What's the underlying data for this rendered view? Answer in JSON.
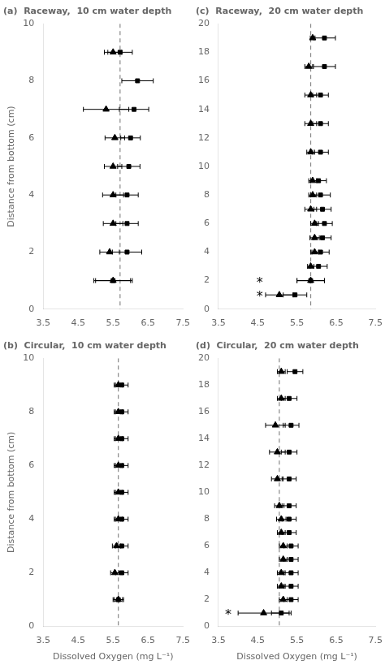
{
  "chart_data": [
    {
      "type": "scatter",
      "title": "(a)  Raceway,  10 cm water depth",
      "ylabel": "Distance from bottom (cm)",
      "xlim": [
        3.5,
        7.5
      ],
      "ylim": [
        0,
        10
      ],
      "xticks": [
        3.5,
        4.5,
        5.5,
        6.5,
        7.5
      ],
      "yticks": [
        0,
        2,
        4,
        6,
        8,
        10
      ],
      "grid": false,
      "vlines": [
        {
          "x": 5.7,
          "color": "#888888",
          "line_style": "dashed"
        }
      ],
      "series": [
        {
          "marker": "triangle",
          "color": "black",
          "x": [
            5.5,
            5.3,
            5.55,
            5.5,
            5.5,
            5.5,
            5.4,
            5.5
          ],
          "values": [
            9,
            7,
            6,
            5,
            4,
            3,
            2,
            1
          ],
          "xerr": [
            0.25,
            0.65,
            0.28,
            0.25,
            0.3,
            0.28,
            0.28,
            0.55
          ]
        },
        {
          "marker": "square",
          "color": "black",
          "x": [
            5.7,
            6.2,
            6.1,
            6.0,
            5.95,
            5.9,
            5.9,
            5.9,
            5.5
          ],
          "values": [
            9,
            8,
            7,
            6,
            5,
            4,
            3,
            2,
            1
          ],
          "xerr": [
            0.35,
            0.45,
            0.42,
            0.28,
            0.32,
            0.32,
            0.32,
            0.42,
            0.5
          ]
        }
      ]
    },
    {
      "type": "scatter",
      "title": "(b)  Circular,  10 cm water depth",
      "ylabel": "Distance from bottom (cm)",
      "xlabel": "Dissolved Oxygen (mg L⁻¹)",
      "xlim": [
        3.5,
        7.5
      ],
      "ylim": [
        0,
        10
      ],
      "xticks": [
        3.5,
        4.5,
        5.5,
        6.5,
        7.5
      ],
      "yticks": [
        0,
        2,
        4,
        6,
        8,
        10
      ],
      "grid": false,
      "vlines": [
        {
          "x": 5.65,
          "color": "#888888",
          "line_style": "dashed"
        }
      ],
      "series": [
        {
          "marker": "triangle",
          "color": "black",
          "x": [
            5.65,
            5.65,
            5.65,
            5.65,
            5.65,
            5.65,
            5.6,
            5.55,
            5.65
          ],
          "values": [
            9,
            8,
            7,
            6,
            5,
            4,
            3,
            2,
            1
          ],
          "xerr": [
            0.12,
            0.12,
            0.12,
            0.12,
            0.12,
            0.12,
            0.12,
            0.12,
            0.12
          ]
        },
        {
          "marker": "square",
          "color": "black",
          "x": [
            5.75,
            5.75,
            5.75,
            5.75,
            5.75,
            5.75,
            5.75,
            5.75,
            5.65
          ],
          "values": [
            9,
            8,
            7,
            6,
            5,
            4,
            3,
            2,
            1
          ],
          "xerr": [
            0.18,
            0.18,
            0.18,
            0.18,
            0.18,
            0.18,
            0.18,
            0.18,
            0.15
          ]
        }
      ]
    },
    {
      "type": "scatter",
      "title": "(c)  Raceway,  20 cm water depth",
      "xlim": [
        3.5,
        7.5
      ],
      "ylim": [
        0,
        20
      ],
      "xticks": [
        3.5,
        4.5,
        5.5,
        6.5,
        7.5
      ],
      "yticks": [
        0,
        2,
        4,
        6,
        8,
        10,
        12,
        14,
        16,
        18,
        20
      ],
      "grid": false,
      "vlines": [
        {
          "x": 5.85,
          "color": "#888888",
          "line_style": "dashed"
        }
      ],
      "annotations": [
        {
          "text": "*",
          "x": 4.55,
          "y": 2
        },
        {
          "text": "*",
          "x": 4.55,
          "y": 1
        }
      ],
      "series": [
        {
          "marker": "triangle",
          "color": "black",
          "x": [
            5.9,
            5.8,
            5.85,
            5.85,
            5.85,
            5.9,
            5.9,
            5.85,
            5.95,
            5.95,
            5.95,
            5.85,
            5.85,
            5.05
          ],
          "values": [
            19,
            17,
            15,
            13,
            11,
            9,
            8,
            7,
            6,
            5,
            4,
            3,
            2,
            1
          ],
          "xerr": [
            0.06,
            0.1,
            0.15,
            0.15,
            0.1,
            0.1,
            0.1,
            0.15,
            0.1,
            0.12,
            0.1,
            0.08,
            0.35,
            0.35
          ]
        },
        {
          "marker": "square",
          "color": "black",
          "x": [
            6.2,
            6.2,
            6.1,
            6.1,
            6.1,
            6.05,
            6.1,
            6.15,
            6.2,
            6.15,
            6.1,
            6.05,
            5.85,
            5.45
          ],
          "values": [
            19,
            17,
            15,
            13,
            11,
            9,
            8,
            7,
            6,
            5,
            4,
            3,
            2,
            1
          ],
          "xerr": [
            0.28,
            0.28,
            0.2,
            0.2,
            0.2,
            0.2,
            0.25,
            0.22,
            0.2,
            0.22,
            0.22,
            0.22,
            0.35,
            0.3
          ]
        }
      ]
    },
    {
      "type": "scatter",
      "title": "(d)  Circular,  20 cm water depth",
      "xlabel": "Dissolved Oxygen (mg L⁻¹)",
      "xlim": [
        3.5,
        7.5
      ],
      "ylim": [
        0,
        20
      ],
      "xticks": [
        3.5,
        4.5,
        5.5,
        6.5,
        7.5
      ],
      "yticks": [
        0,
        2,
        4,
        6,
        8,
        10,
        12,
        14,
        16,
        18,
        20
      ],
      "grid": false,
      "vlines": [
        {
          "x": 5.05,
          "color": "#888888",
          "line_style": "dashed"
        }
      ],
      "annotations": [
        {
          "text": "*",
          "x": 3.75,
          "y": 1
        }
      ],
      "series": [
        {
          "marker": "triangle",
          "color": "black",
          "x": [
            5.1,
            5.1,
            4.95,
            5.0,
            5.0,
            5.05,
            5.1,
            5.1,
            5.15,
            5.15,
            5.1,
            5.1,
            5.15,
            4.65
          ],
          "values": [
            19,
            17,
            15,
            13,
            11,
            9,
            8,
            7,
            6,
            5,
            4,
            3,
            2,
            1
          ],
          "xerr": [
            0.1,
            0.1,
            0.25,
            0.2,
            0.15,
            0.12,
            0.12,
            0.1,
            0.1,
            0.1,
            0.1,
            0.1,
            0.1,
            0.65
          ]
        },
        {
          "marker": "square",
          "color": "black",
          "x": [
            5.45,
            5.3,
            5.35,
            5.3,
            5.3,
            5.3,
            5.3,
            5.3,
            5.35,
            5.35,
            5.35,
            5.35,
            5.35,
            5.1
          ],
          "values": [
            19,
            17,
            15,
            13,
            11,
            9,
            8,
            7,
            6,
            5,
            4,
            3,
            2,
            1
          ],
          "xerr": [
            0.2,
            0.2,
            0.2,
            0.2,
            0.18,
            0.18,
            0.18,
            0.18,
            0.18,
            0.18,
            0.18,
            0.18,
            0.18,
            0.25
          ]
        }
      ]
    }
  ]
}
